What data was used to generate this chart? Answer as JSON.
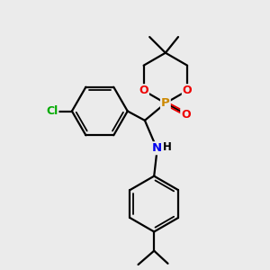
{
  "bg_color": "#ebebeb",
  "atom_colors": {
    "C": "#000000",
    "H": "#000000",
    "N": "#0000ee",
    "O": "#ee0000",
    "P": "#cc8800",
    "Cl": "#00aa00"
  },
  "bond_color": "#000000",
  "bond_width": 1.6,
  "fig_width": 3.0,
  "fig_height": 3.0,
  "dpi": 100
}
